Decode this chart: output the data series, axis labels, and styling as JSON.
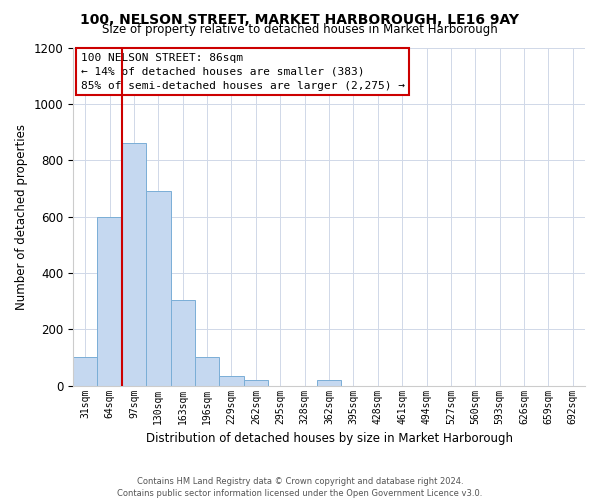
{
  "title": "100, NELSON STREET, MARKET HARBOROUGH, LE16 9AY",
  "subtitle": "Size of property relative to detached houses in Market Harborough",
  "xlabel": "Distribution of detached houses by size in Market Harborough",
  "ylabel": "Number of detached properties",
  "bar_values": [
    100,
    600,
    860,
    690,
    305,
    100,
    33,
    20,
    0,
    0,
    20,
    0,
    0,
    0,
    0,
    0,
    0,
    0,
    0,
    0,
    0
  ],
  "bin_labels": [
    "31sqm",
    "64sqm",
    "97sqm",
    "130sqm",
    "163sqm",
    "196sqm",
    "229sqm",
    "262sqm",
    "295sqm",
    "328sqm",
    "362sqm",
    "395sqm",
    "428sqm",
    "461sqm",
    "494sqm",
    "527sqm",
    "560sqm",
    "593sqm",
    "626sqm",
    "659sqm",
    "692sqm"
  ],
  "bar_color": "#c5d8f0",
  "bar_edge_color": "#7aaed6",
  "vline_color": "#cc0000",
  "vline_x": 1.5,
  "annotation_box_text": "100 NELSON STREET: 86sqm\n← 14% of detached houses are smaller (383)\n85% of semi-detached houses are larger (2,275) →",
  "box_edge_color": "#cc0000",
  "ylim": [
    0,
    1200
  ],
  "yticks": [
    0,
    200,
    400,
    600,
    800,
    1000,
    1200
  ],
  "footer_text": "Contains HM Land Registry data © Crown copyright and database right 2024.\nContains public sector information licensed under the Open Government Licence v3.0.",
  "bg_color": "#ffffff",
  "grid_color": "#d0d8e8"
}
